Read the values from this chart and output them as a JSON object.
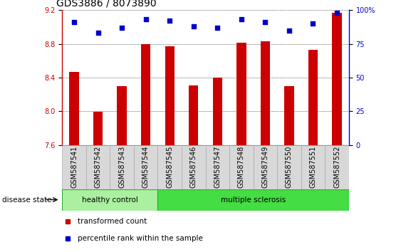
{
  "title": "GDS3886 / 8073890",
  "samples": [
    "GSM587541",
    "GSM587542",
    "GSM587543",
    "GSM587544",
    "GSM587545",
    "GSM587546",
    "GSM587547",
    "GSM587548",
    "GSM587549",
    "GSM587550",
    "GSM587551",
    "GSM587552"
  ],
  "bar_values": [
    8.47,
    7.99,
    8.3,
    8.8,
    8.77,
    8.31,
    8.4,
    8.81,
    8.83,
    8.3,
    8.73,
    9.17
  ],
  "dot_values": [
    91,
    83,
    87,
    93,
    92,
    88,
    87,
    93,
    91,
    85,
    90,
    98
  ],
  "ylim_left": [
    7.6,
    9.2
  ],
  "ylim_right": [
    0,
    100
  ],
  "yticks_left": [
    7.6,
    8.0,
    8.4,
    8.8,
    9.2
  ],
  "yticks_right": [
    0,
    25,
    50,
    75,
    100
  ],
  "bar_color": "#cc0000",
  "dot_color": "#0000cc",
  "healthy_color": "#aaf0a0",
  "ms_color": "#44dd44",
  "healthy_samples": 4,
  "total_samples": 12,
  "legend_bar_label": "transformed count",
  "legend_dot_label": "percentile rank within the sample",
  "group_label": "disease state",
  "group1_label": "healthy control",
  "group2_label": "multiple sclerosis",
  "title_fontsize": 10,
  "tick_fontsize": 7,
  "label_fontsize": 7.5,
  "xtick_box_color": "#d8d8d8",
  "xtick_box_edge": "#aaaaaa"
}
